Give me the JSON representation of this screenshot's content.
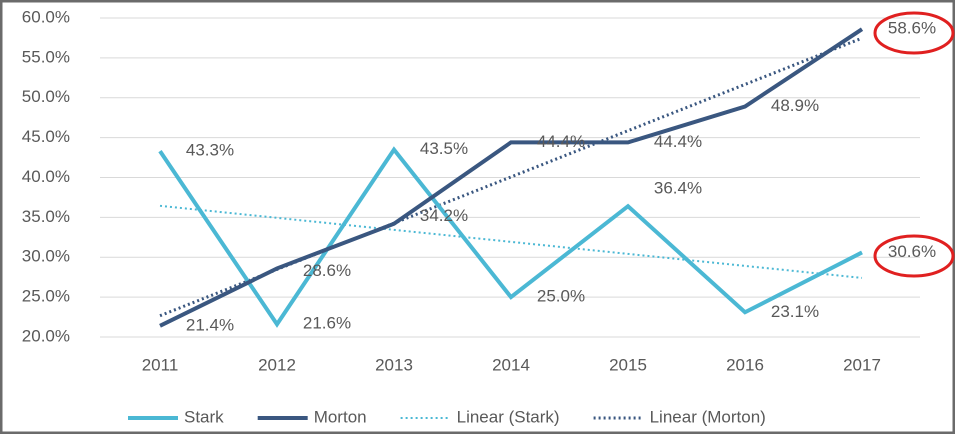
{
  "chart_data": {
    "type": "line",
    "categories": [
      "2011",
      "2012",
      "2013",
      "2014",
      "2015",
      "2016",
      "2017"
    ],
    "series": [
      {
        "name": "Stark",
        "color": "#4bb8d4",
        "values": [
          43.3,
          21.6,
          43.5,
          25.0,
          36.4,
          23.1,
          30.6
        ],
        "value_labels": [
          "43.3%",
          "21.6%",
          "43.5%",
          "25.0%",
          "36.4%",
          "23.1%",
          "30.6%"
        ],
        "trendline": {
          "name": "Linear (Stark)"
        }
      },
      {
        "name": "Morton",
        "color": "#3a5780",
        "values": [
          21.4,
          28.6,
          34.2,
          44.4,
          44.4,
          48.9,
          58.6
        ],
        "value_labels": [
          "21.4%",
          "28.6%",
          "34.2%",
          "44.4%",
          "44.4%",
          "48.9%",
          "58.6%"
        ],
        "trendline": {
          "name": "Linear (Morton)"
        }
      }
    ],
    "ylim": [
      20,
      60
    ],
    "yticks": [
      {
        "value": 20,
        "label": "20.0%"
      },
      {
        "value": 25,
        "label": "25.0%"
      },
      {
        "value": 30,
        "label": "30.0%"
      },
      {
        "value": 35,
        "label": "35.0%"
      },
      {
        "value": 40,
        "label": "40.0%"
      },
      {
        "value": 45,
        "label": "45.0%"
      },
      {
        "value": 50,
        "label": "50.0%"
      },
      {
        "value": 55,
        "label": "55.0%"
      },
      {
        "value": 60,
        "label": "60.0%"
      }
    ],
    "grid": true,
    "legend": "bottom"
  }
}
